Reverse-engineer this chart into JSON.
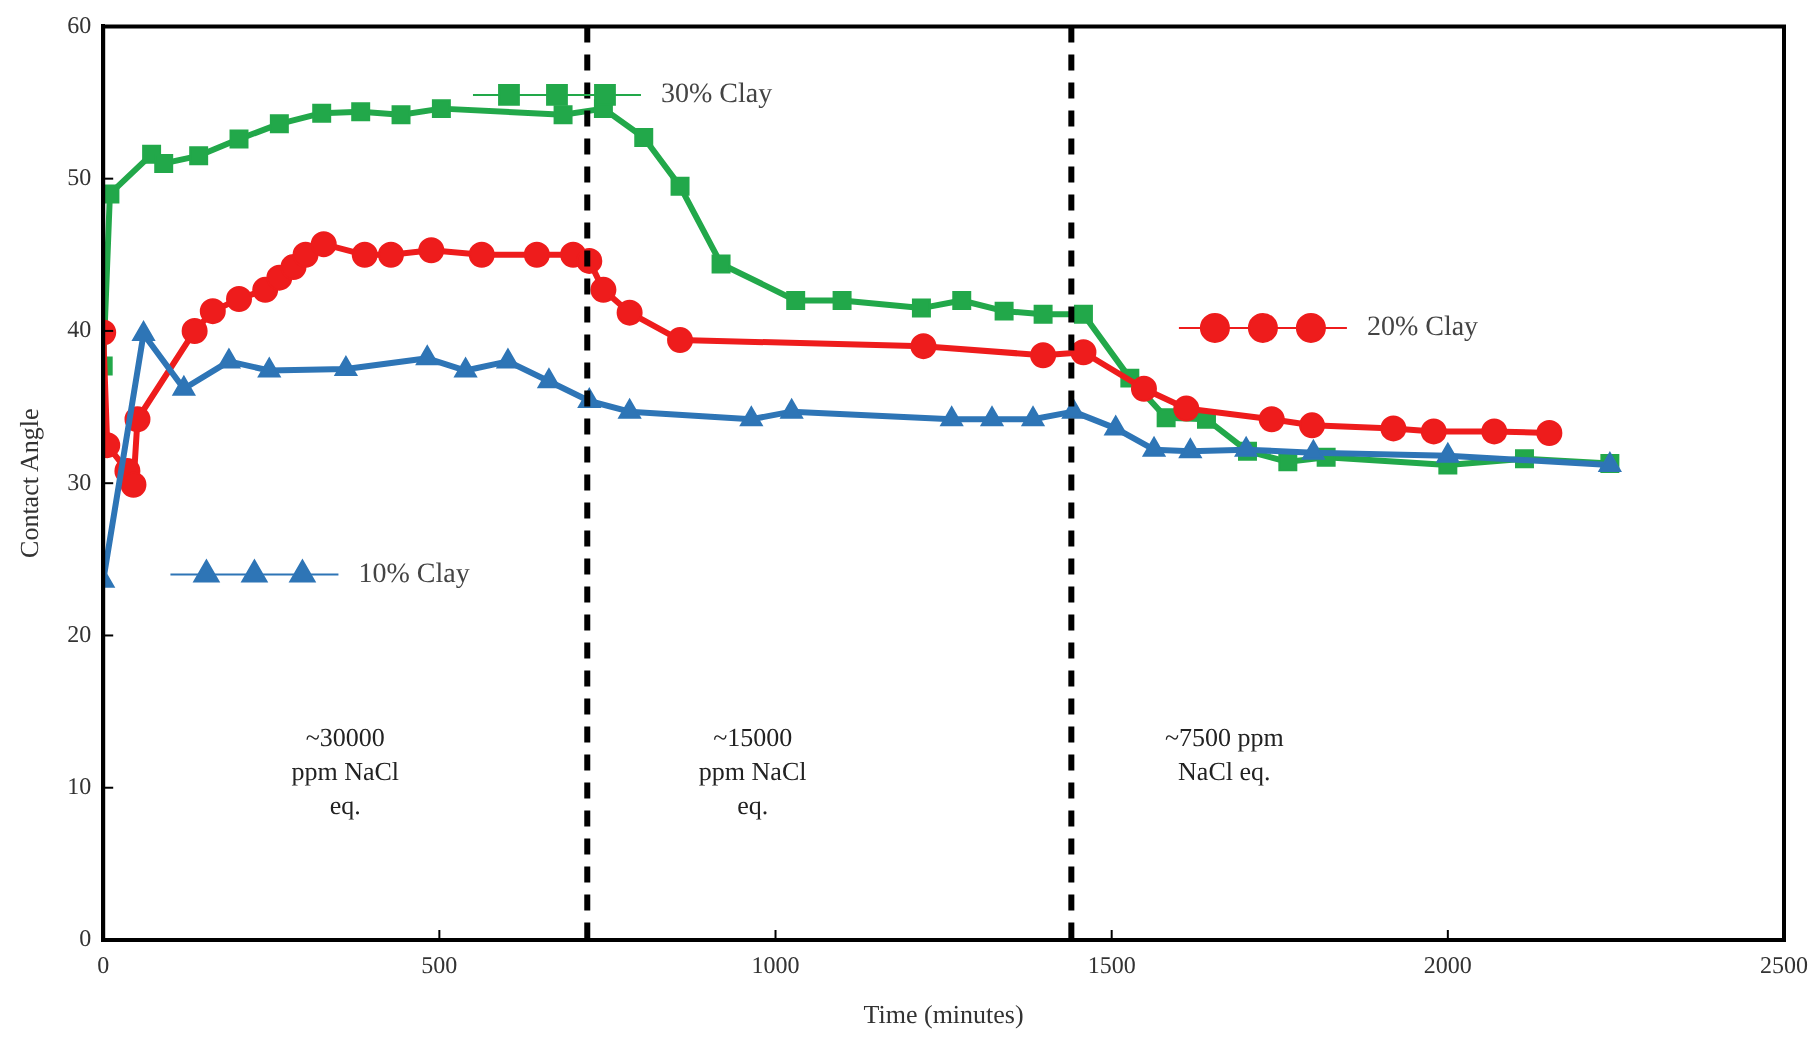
{
  "chart_data": {
    "type": "line",
    "xlabel": "Time (minutes)",
    "ylabel": "Contact Angle",
    "xlim": [
      0,
      2500
    ],
    "xticks": [
      0,
      500,
      1000,
      1500,
      2000,
      2500
    ],
    "ylim": [
      0,
      60
    ],
    "yticks": [
      0,
      10,
      20,
      30,
      40,
      50,
      60
    ],
    "grid": false,
    "legend": "top",
    "line_style": "solid",
    "series": [
      {
        "name": "10% Clay",
        "color": "#2e75b6",
        "marker": "triangle",
        "x": [
          0,
          60,
          120,
          187,
          247,
          361,
          482,
          539,
          602,
          663,
          723,
          783,
          964,
          1024,
          1262,
          1322,
          1383,
          1443,
          1506,
          1563,
          1617,
          1700,
          1800,
          2000,
          2241
        ],
        "values": [
          23.6,
          39.8,
          36.2,
          38,
          37.4,
          37.5,
          38.2,
          37.4,
          38,
          36.7,
          35.4,
          34.7,
          34.2,
          34.7,
          34.2,
          34.2,
          34.2,
          34.7,
          33.6,
          32.2,
          32.1,
          32.2,
          32,
          31.8,
          31.2
        ]
      },
      {
        "name": "20% Clay",
        "color": "#ee1c1c",
        "marker": "circle",
        "x": [
          0,
          6,
          36,
          45,
          51,
          136,
          163,
          202,
          241,
          262,
          283,
          301,
          328,
          389,
          428,
          488,
          563,
          645,
          699,
          723,
          744,
          783,
          858,
          1220,
          1398,
          1458,
          1548,
          1611,
          1738,
          1798,
          1919,
          1979,
          2069,
          2151
        ],
        "values": [
          39.9,
          32.5,
          30.8,
          29.9,
          34.2,
          40,
          41.3,
          42.1,
          42.7,
          43.5,
          44.2,
          45,
          45.7,
          45,
          45,
          45.3,
          45,
          45,
          45,
          44.6,
          42.7,
          41.2,
          39.4,
          39,
          38.4,
          38.6,
          36.2,
          34.9,
          34.2,
          33.8,
          33.6,
          33.4,
          33.4,
          33.3
        ]
      },
      {
        "name": "30% Clay",
        "color": "#22a84a",
        "marker": "square",
        "x": [
          0,
          10,
          72,
          90,
          142,
          202,
          262,
          325,
          383,
          443,
          503,
          684,
          744,
          804,
          858,
          919,
          1030,
          1099,
          1217,
          1277,
          1340,
          1398,
          1458,
          1527,
          1581,
          1641,
          1702,
          1762,
          1819,
          2000,
          2114,
          2241
        ],
        "values": [
          37.7,
          49,
          51.6,
          51,
          51.5,
          52.6,
          53.6,
          54.3,
          54.4,
          54.2,
          54.6,
          54.2,
          54.6,
          52.7,
          49.5,
          44.4,
          42,
          42,
          41.5,
          42,
          41.3,
          41.1,
          41.1,
          36.9,
          34.3,
          34.2,
          32.1,
          31.4,
          31.7,
          31.2,
          31.6,
          31.3
        ]
      }
    ],
    "ref_lines": [
      {
        "axis": "x",
        "value": 720,
        "color": "#000000",
        "line_style": "dashed"
      },
      {
        "axis": "x",
        "value": 1440,
        "color": "#000000",
        "line_style": "dashed"
      }
    ],
    "annotations": [
      "~30000\nppm NaCl\neq.",
      "~15000\nppm NaCl\neq.",
      "~7500 ppm\nNaCl eq."
    ]
  }
}
